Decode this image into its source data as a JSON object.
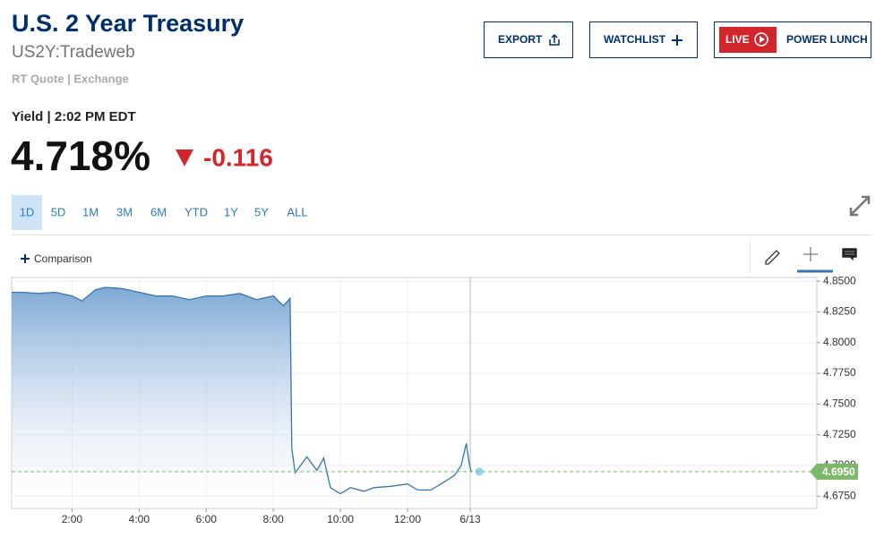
{
  "header": {
    "title": "U.S. 2 Year Treasury",
    "symbol": "US2Y:Tradeweb",
    "quote_source": "RT Quote | Exchange",
    "time_label": "Yield | 2:02 PM EDT",
    "price": "4.718%",
    "change": "-0.116"
  },
  "buttons": [
    "EXPORT",
    "WATCHLIST",
    "LIVE",
    "POWER LUNCH"
  ],
  "ranges": [
    "1D",
    "5D",
    "1M",
    "3M",
    "6M",
    "YTD",
    "1Y",
    "5Y",
    "ALL"
  ],
  "comparison": "Comparison",
  "chart_data": {
    "type": "area",
    "x": [
      0.2,
      0.5,
      1.0,
      1.5,
      2.0,
      2.3,
      2.7,
      3.0,
      3.5,
      4.0,
      4.5,
      5.0,
      5.5,
      6.0,
      6.5,
      7.0,
      7.5,
      8.0,
      8.3,
      8.5,
      8.55,
      8.65,
      9.0,
      9.3,
      9.5,
      9.7,
      10.0,
      10.3,
      10.7,
      11.0,
      11.5,
      12.0,
      12.3,
      12.7,
      13.0,
      13.4,
      13.6,
      13.75,
      13.85,
      13.9
    ],
    "series": [
      {
        "name": "US2Y",
        "color": "#3a74ad",
        "fill": "#6f9fd0",
        "values": [
          4.841,
          4.841,
          4.84,
          4.841,
          4.838,
          4.834,
          4.843,
          4.845,
          4.844,
          4.841,
          4.838,
          4.838,
          4.835,
          4.838,
          4.838,
          4.84,
          4.835,
          4.838,
          4.83,
          4.836,
          4.714,
          4.694,
          4.707,
          4.696,
          4.706,
          4.682,
          4.677,
          4.682,
          4.679,
          4.682,
          4.683,
          4.685,
          4.68,
          4.68,
          4.685,
          4.692,
          4.7,
          4.718,
          4.7,
          4.695
        ]
      }
    ],
    "xlim": [
      0.2,
      24.2
    ],
    "xticks": [
      {
        "value": 2,
        "label": "2:00"
      },
      {
        "value": 4,
        "label": "4:00"
      },
      {
        "value": 6,
        "label": "6:00"
      },
      {
        "value": 8,
        "label": "8:00"
      },
      {
        "value": 10,
        "label": "10:00"
      },
      {
        "value": 12,
        "label": "12:00"
      },
      {
        "value": 13.87,
        "label": "6/13"
      }
    ],
    "ylim": [
      4.665,
      4.853
    ],
    "yticks": [
      {
        "value": 4.675,
        "label": "4.6750"
      },
      {
        "value": 4.7,
        "label": "4.7000"
      },
      {
        "value": 4.725,
        "label": "4.7250"
      },
      {
        "value": 4.75,
        "label": "4.7500"
      },
      {
        "value": 4.775,
        "label": "4.7750"
      },
      {
        "value": 4.8,
        "label": "4.8000"
      },
      {
        "value": 4.825,
        "label": "4.8250"
      },
      {
        "value": 4.85,
        "label": "4.8500"
      }
    ],
    "last_value": {
      "value": 4.695,
      "label": "4.6950",
      "color": "#7cb868"
    },
    "grid": true
  }
}
